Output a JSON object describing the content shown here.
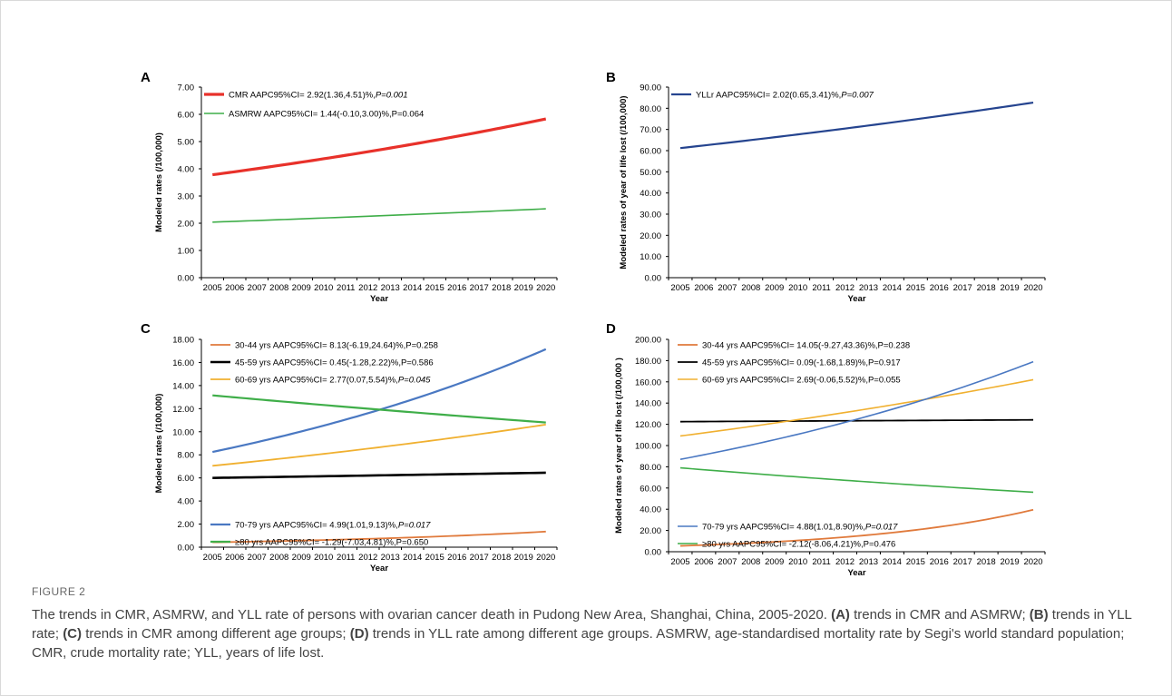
{
  "colors": {
    "red": "#e8312a",
    "green": "#3fae49",
    "navy": "#25448f",
    "orange": "#e07a3c",
    "black": "#000000",
    "gold": "#f0b030",
    "blue": "#4a78c2"
  },
  "caption": {
    "label": "FIGURE 2",
    "sentence": "The trends in CMR, ASMRW, and YLL rate of persons with ovarian cancer death in Pudong New Area, Shanghai, China, 2005-2020.",
    "a_label": "(A)",
    "a_text": "trends in CMR and ASMRW;",
    "b_label": "(B)",
    "b_text": "trends in YLL rate;",
    "c_label": "(C)",
    "c_text": "trends in CMR among different age groups;",
    "d_label": "(D)",
    "d_text": "trends in YLL rate among different age groups.",
    "abbrev": "ASMRW, age-standardised mortality rate by Segi's world standard population; CMR, crude mortality rate; YLL, years of life lost."
  },
  "chart_data": [
    {
      "panel": "A",
      "type": "line",
      "xlabel": "Year",
      "ylabel": "Modeled rates (/100,000)",
      "x": [
        2005,
        2006,
        2007,
        2008,
        2009,
        2010,
        2011,
        2012,
        2013,
        2014,
        2015,
        2016,
        2017,
        2018,
        2019,
        2020
      ],
      "ylim": [
        0,
        7
      ],
      "yticks": [
        "0.00",
        "1.00",
        "2.00",
        "3.00",
        "4.00",
        "5.00",
        "6.00",
        "7.00"
      ],
      "series": [
        {
          "color": "red",
          "width": 3.2,
          "legend_plain": "CMR AAPC95%CI= 2.92(1.36,4.51)%,",
          "legend_italic": "P=0.001",
          "start": 3.78,
          "end": 5.83
        },
        {
          "color": "green",
          "width": 1.6,
          "legend_plain": "ASMRW AAPC95%CI= 1.44(-0.10,3.00)%,P=0.064",
          "legend_italic": "",
          "start": 2.04,
          "end": 2.53
        }
      ]
    },
    {
      "panel": "B",
      "type": "line",
      "xlabel": "Year",
      "ylabel": "Modeled rates of year of life lost (/100,000)",
      "x": [
        2005,
        2006,
        2007,
        2008,
        2009,
        2010,
        2011,
        2012,
        2013,
        2014,
        2015,
        2016,
        2017,
        2018,
        2019,
        2020
      ],
      "ylim": [
        0,
        90
      ],
      "yticks": [
        "0.00",
        "10.00",
        "20.00",
        "30.00",
        "40.00",
        "50.00",
        "60.00",
        "70.00",
        "80.00",
        "90.00"
      ],
      "series": [
        {
          "color": "navy",
          "width": 2.2,
          "legend_plain": "YLLr AAPC95%CI= 2.02(0.65,3.41)%,",
          "legend_italic": "P=0.007",
          "start": 61.2,
          "end": 82.7
        }
      ]
    },
    {
      "panel": "C",
      "type": "line",
      "xlabel": "Year",
      "ylabel": "Modeled rates (/100,000)",
      "x": [
        2005,
        2006,
        2007,
        2008,
        2009,
        2010,
        2011,
        2012,
        2013,
        2014,
        2015,
        2016,
        2017,
        2018,
        2019,
        2020
      ],
      "ylim": [
        0,
        18
      ],
      "yticks": [
        "0.00",
        "2.00",
        "4.00",
        "6.00",
        "8.00",
        "10.00",
        "12.00",
        "14.00",
        "16.00",
        "18.00"
      ],
      "series": [
        {
          "color": "orange",
          "width": 1.8,
          "legend_plain": "30-44 yrs AAPC95%CI= 8.13(-6.19,24.64)%,P=0.258",
          "legend_italic": "",
          "start": 0.42,
          "end": 1.35
        },
        {
          "color": "black",
          "width": 2.6,
          "legend_plain": "45-59 yrs AAPC95%CI= 0.45(-1.28,2.22)%,P=0.586",
          "legend_italic": "",
          "start": 6.0,
          "end": 6.45
        },
        {
          "color": "gold",
          "width": 1.8,
          "legend_plain": "60-69 yrs AAPC95%CI= 2.77(0.07,5.54)%,",
          "legend_italic": "P=0.045",
          "start": 7.05,
          "end": 10.62
        },
        {
          "color": "blue",
          "width": 2.2,
          "legend_plain": "70-79 yrs AAPC95%CI= 4.99(1.01,9.13)%,",
          "legend_italic": "P=0.017",
          "start": 8.25,
          "end": 17.15
        },
        {
          "color": "green",
          "width": 2.2,
          "legend_plain": "≥80 yrs AAPC95%CI= -1.29(-7.03,4.81)%,P=0.650",
          "legend_italic": "",
          "start": 13.15,
          "end": 10.8
        }
      ]
    },
    {
      "panel": "D",
      "type": "line",
      "xlabel": "Year",
      "ylabel": "Modeled rates of year of life lost (/100,000 )",
      "x": [
        2005,
        2006,
        2007,
        2008,
        2009,
        2010,
        2011,
        2012,
        2013,
        2014,
        2015,
        2016,
        2017,
        2018,
        2019,
        2020
      ],
      "ylim": [
        0,
        200
      ],
      "yticks": [
        "0.00",
        "20.00",
        "40.00",
        "60.00",
        "80.00",
        "100.00",
        "120.00",
        "140.00",
        "160.00",
        "180.00",
        "200.00"
      ],
      "series": [
        {
          "color": "orange",
          "width": 1.8,
          "legend_plain": "30-44 yrs AAPC95%CI= 14.05(-9.27,43.36)%,P=0.238",
          "legend_italic": "",
          "start": 5.5,
          "end": 39.5
        },
        {
          "color": "black",
          "width": 1.8,
          "legend_plain": "45-59 yrs AAPC95%CI= 0.09(-1.68,1.89)%,P=0.917",
          "legend_italic": "",
          "start": 122.5,
          "end": 124.2
        },
        {
          "color": "gold",
          "width": 1.6,
          "legend_plain": "60-69 yrs AAPC95%CI= 2.69(-0.06,5.52)%,P=0.055",
          "legend_italic": "",
          "start": 109.0,
          "end": 162.0
        },
        {
          "color": "blue",
          "width": 1.6,
          "legend_plain": "70-79 yrs AAPC95%CI= 4.88(1.01,8.90)%,",
          "legend_italic": "P=0.017",
          "start": 87.0,
          "end": 179.0
        },
        {
          "color": "green",
          "width": 1.6,
          "legend_plain": "≥80 yrs AAPC95%CI= -2.12(-8.06,4.21)%,P=0.476",
          "legend_italic": "",
          "start": 79.0,
          "end": 56.0
        }
      ]
    }
  ]
}
